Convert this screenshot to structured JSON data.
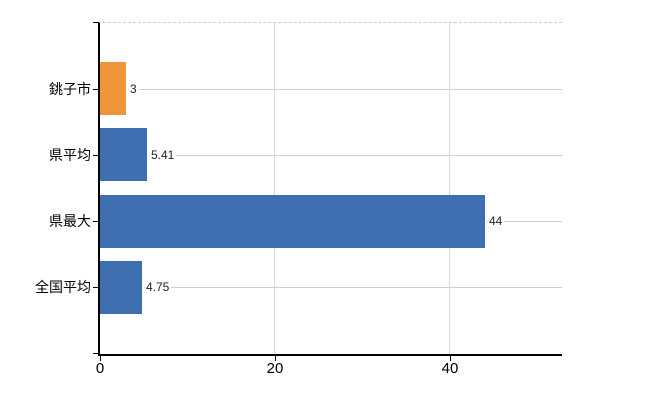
{
  "chart_data": {
    "type": "bar",
    "orientation": "horizontal",
    "title": "",
    "categories": [
      "銚子市",
      "県平均",
      "県最大",
      "全国平均"
    ],
    "values": [
      3,
      5.41,
      44,
      4.75
    ],
    "value_labels": [
      "3",
      "5.41",
      "44",
      "4.75"
    ],
    "bar_colors": [
      "#ED9538",
      "#3E6FB0",
      "#3E6FB0",
      "#3E6FB0"
    ],
    "x_tick_labels": [
      "0",
      "20",
      "40"
    ],
    "x_tick_values": [
      0,
      20,
      40
    ],
    "xlim": [
      0,
      52.8
    ],
    "grid": "vertical",
    "legend": "none",
    "colors": {
      "highlight_bar": "#ED9538",
      "default_bar": "#3E6FB0",
      "gridline": "#d9d9d9",
      "row_guide": "#d0d0d0",
      "axis": "#000000",
      "background": "#ffffff"
    }
  }
}
